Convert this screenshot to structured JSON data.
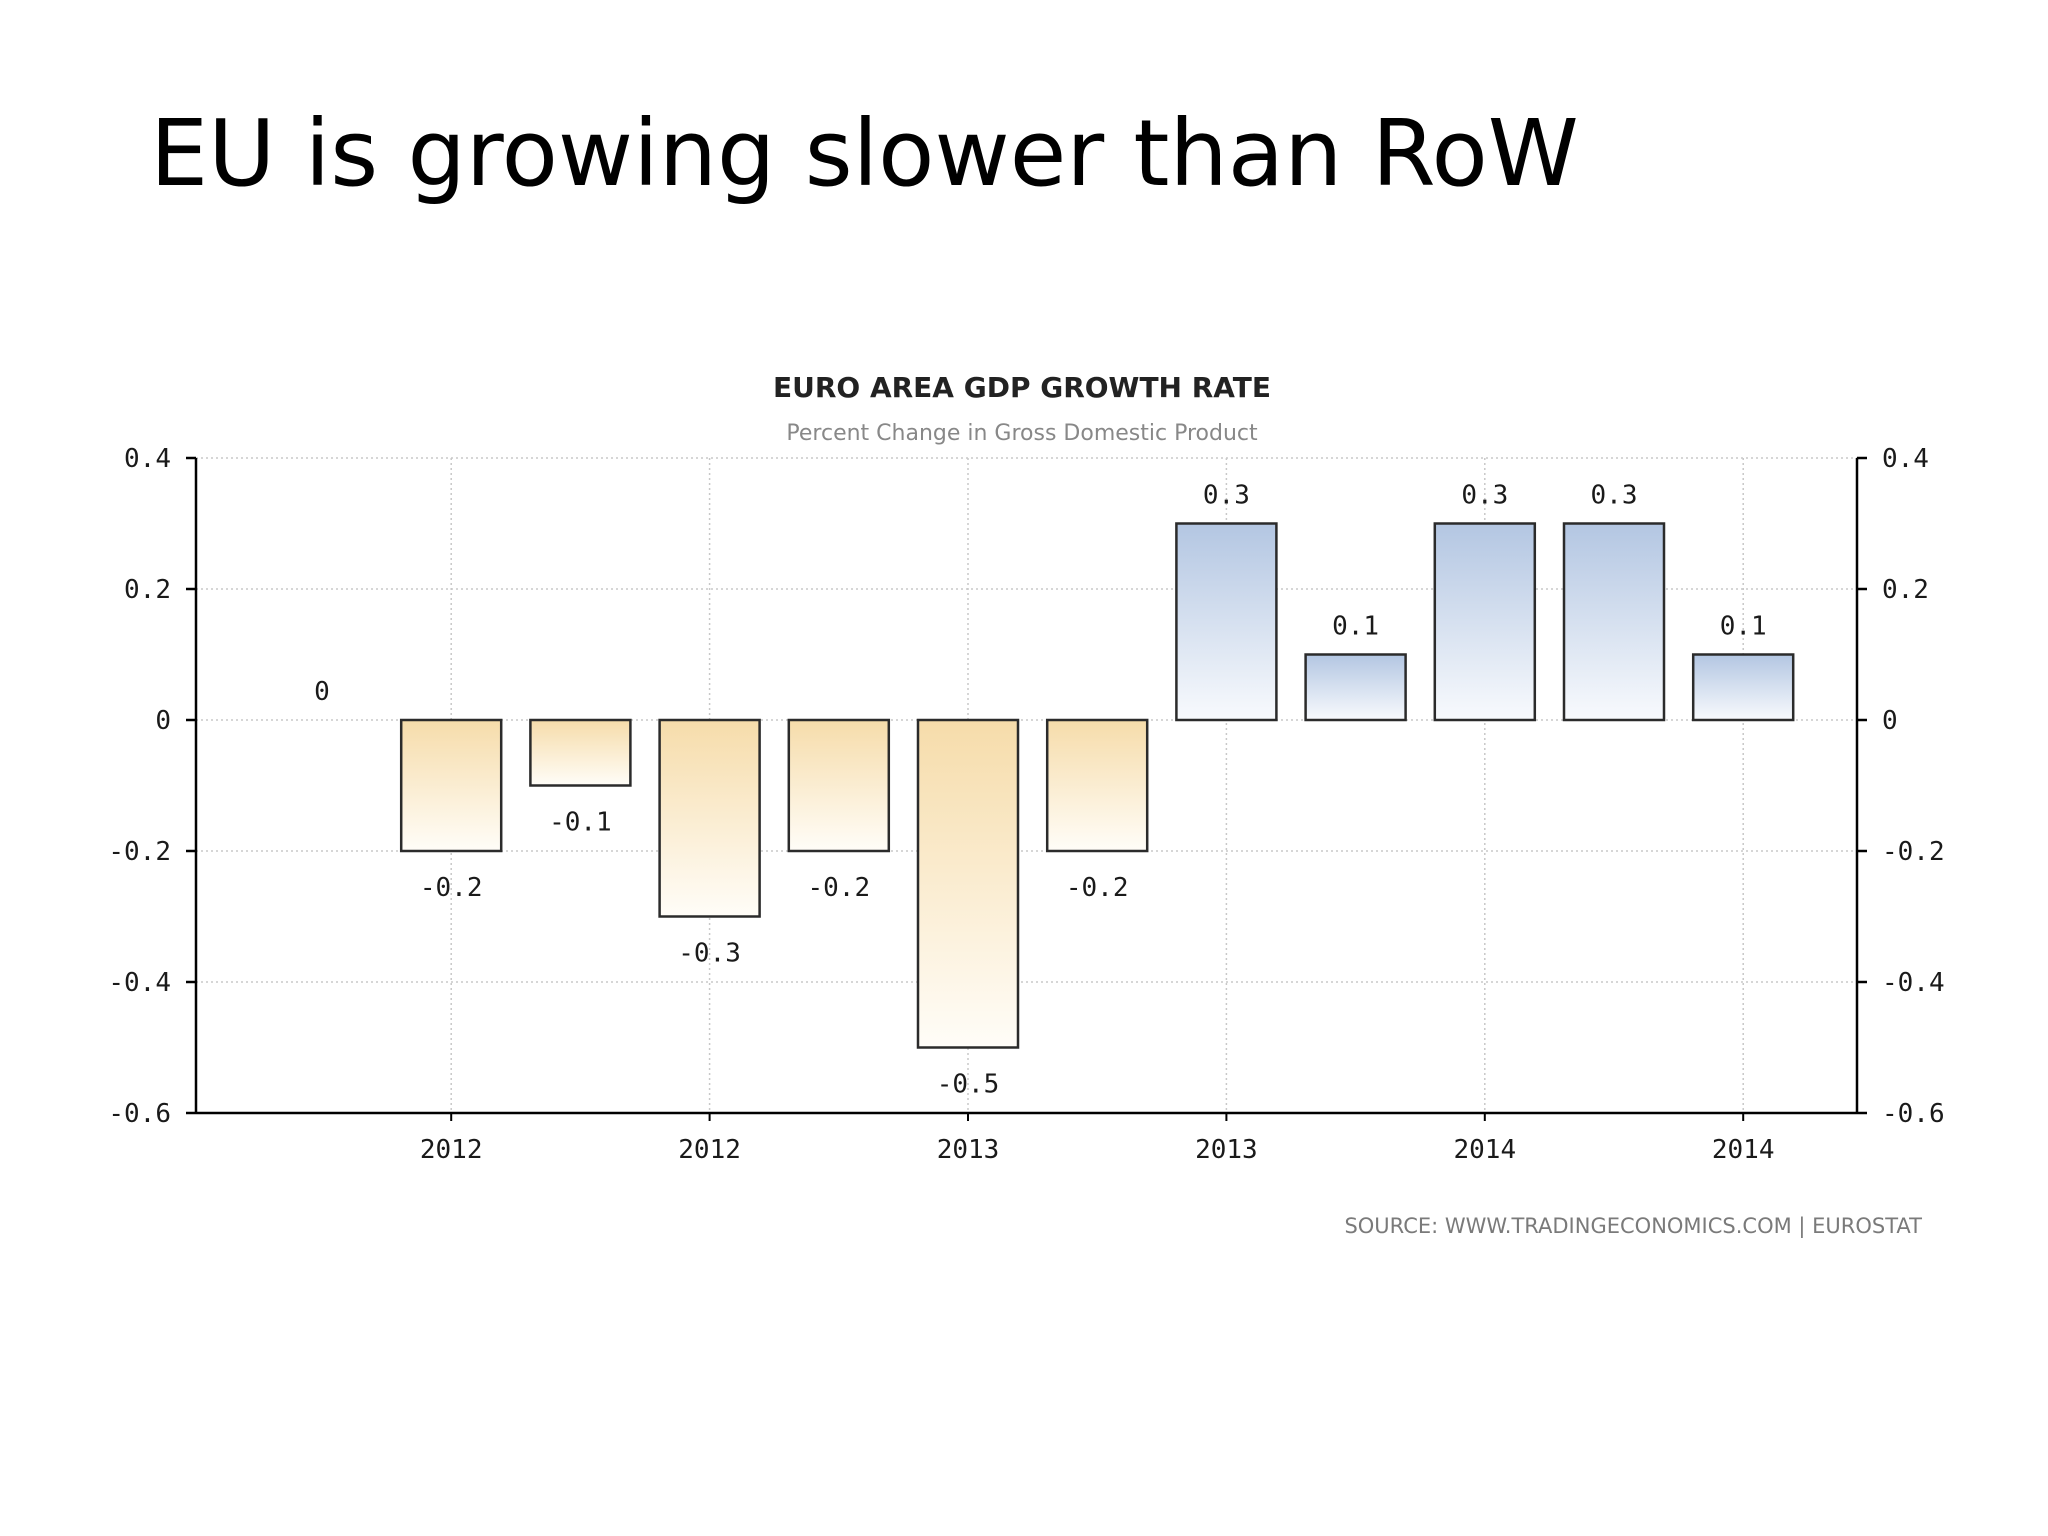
{
  "slide": {
    "title": "EU is growing slower than RoW"
  },
  "chart_data": {
    "type": "bar",
    "title": "EURO AREA GDP GROWTH RATE",
    "subtitle": "Percent Change in Gross Domestic Product",
    "source": "SOURCE:  WWW.TRADINGECONOMICS.COM  |  EUROSTAT",
    "values": [
      0,
      -0.2,
      -0.1,
      -0.3,
      -0.2,
      -0.5,
      -0.2,
      0.3,
      0.1,
      0.3,
      0.3,
      0.1
    ],
    "data_labels": [
      "0",
      "-0.2",
      "-0.1",
      "-0.3",
      "-0.2",
      "-0.5",
      "-0.2",
      "0.3",
      "0.1",
      "0.3",
      "0.3",
      "0.1"
    ],
    "x_tick_labels": [
      "2012",
      "2012",
      "2013",
      "2013",
      "2014",
      "2014"
    ],
    "x_tick_bar_index": [
      1,
      3,
      5,
      7,
      9,
      11
    ],
    "y_ticks": [
      0.4,
      0.2,
      0,
      -0.2,
      -0.4,
      -0.6
    ],
    "y_tick_labels": [
      "0.4",
      "0.2",
      "0",
      "-0.2",
      "-0.4",
      "-0.6"
    ],
    "ylim": [
      -0.6,
      0.4
    ],
    "grid": true,
    "dual_y_axis": true,
    "colors": {
      "negative_top": "#f6dcaa",
      "negative_bottom": "#fffdf8",
      "positive_top": "#b3c6e2",
      "positive_bottom": "#f8fafd",
      "bar_stroke": "#2b2b2b",
      "grid": "#c8c8c8",
      "axis": "#000000"
    }
  }
}
